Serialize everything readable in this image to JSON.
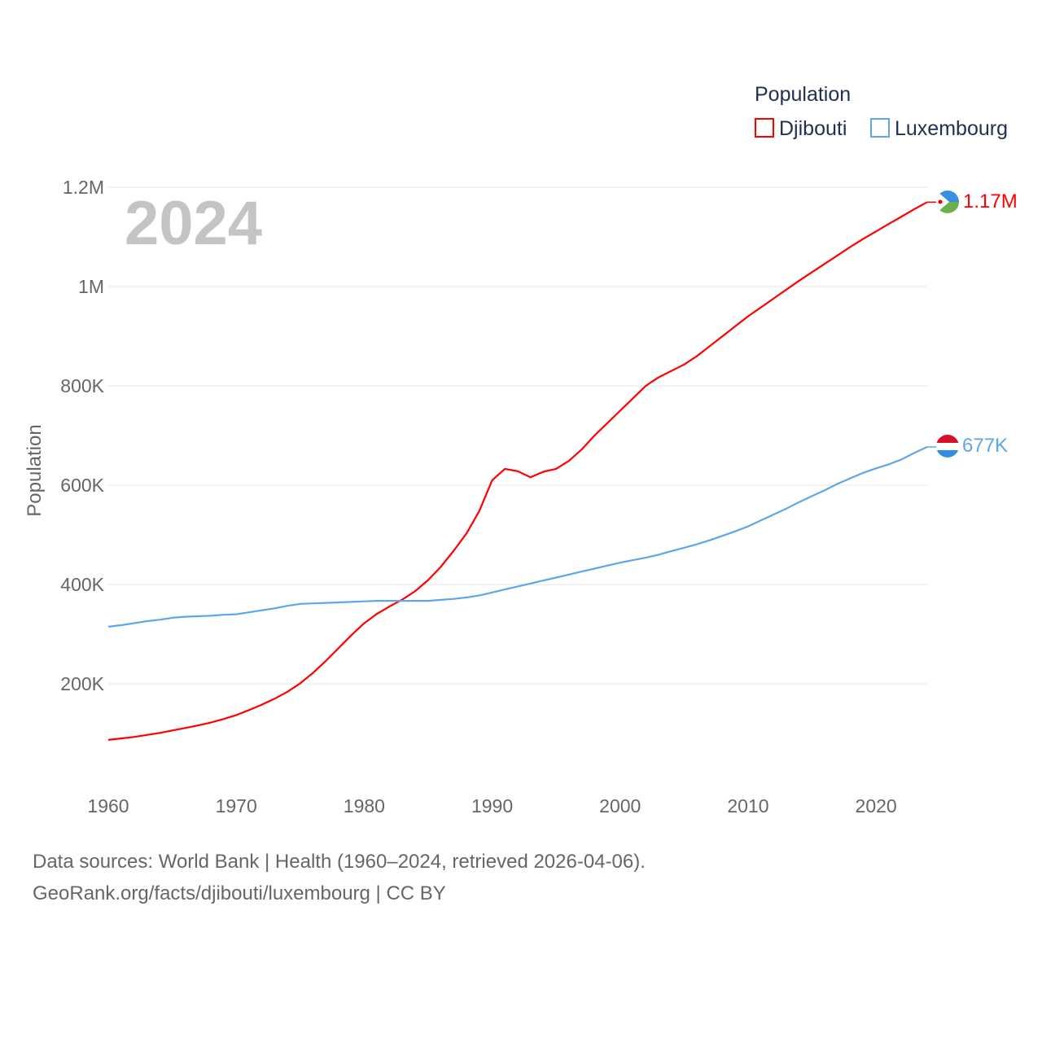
{
  "chart_data": {
    "type": "line",
    "title": "",
    "xlabel": "",
    "ylabel": "Population",
    "xlim": [
      1960,
      2024
    ],
    "ylim": [
      0,
      1200000
    ],
    "grid": true,
    "legend": {
      "title": "Population",
      "placement": "top-right"
    },
    "current_year_label": "2024",
    "x_ticks": [
      "1960",
      "1970",
      "1980",
      "1990",
      "2000",
      "2010",
      "2020"
    ],
    "y_ticks": [
      {
        "value": 200000,
        "label": "200K"
      },
      {
        "value": 400000,
        "label": "400K"
      },
      {
        "value": 600000,
        "label": "600K"
      },
      {
        "value": 800000,
        "label": "800K"
      },
      {
        "value": 1000000,
        "label": "1M"
      },
      {
        "value": 1200000,
        "label": "1.2M"
      }
    ],
    "x": [
      1960,
      1961,
      1962,
      1963,
      1964,
      1965,
      1966,
      1967,
      1968,
      1969,
      1970,
      1971,
      1972,
      1973,
      1974,
      1975,
      1976,
      1977,
      1978,
      1979,
      1980,
      1981,
      1982,
      1983,
      1984,
      1985,
      1986,
      1987,
      1988,
      1989,
      1990,
      1991,
      1992,
      1993,
      1994,
      1995,
      1996,
      1997,
      1998,
      1999,
      2000,
      2001,
      2002,
      2003,
      2004,
      2005,
      2006,
      2007,
      2008,
      2009,
      2010,
      2011,
      2012,
      2013,
      2014,
      2015,
      2016,
      2017,
      2018,
      2019,
      2020,
      2021,
      2022,
      2023,
      2024
    ],
    "series": [
      {
        "name": "Djibouti",
        "color": "#ff0000",
        "end_label": "1.17M",
        "values": [
          87000,
          90000,
          93000,
          97000,
          101000,
          106000,
          111000,
          116000,
          122000,
          129000,
          137000,
          147000,
          158000,
          170000,
          184000,
          201000,
          222000,
          246000,
          272000,
          298000,
          322000,
          341000,
          356000,
          370000,
          387000,
          409000,
          436000,
          468000,
          503000,
          548000,
          610000,
          633000,
          628000,
          616000,
          627000,
          633000,
          649000,
          672000,
          700000,
          725000,
          750000,
          775000,
          800000,
          817000,
          830000,
          843000,
          860000,
          880000,
          900000,
          920000,
          940000,
          958000,
          976000,
          994000,
          1012000,
          1029000,
          1046000,
          1063000,
          1080000,
          1096000,
          1111000,
          1126000,
          1141000,
          1156000,
          1170000
        ]
      },
      {
        "name": "Luxembourg",
        "color": "#5ea6ea",
        "end_label": "677K",
        "values": [
          315000,
          318000,
          322000,
          326000,
          329000,
          333000,
          335000,
          336000,
          337000,
          339000,
          340000,
          344000,
          348000,
          352000,
          357000,
          361000,
          362000,
          363000,
          364000,
          365000,
          366000,
          367000,
          367000,
          367000,
          367000,
          367000,
          369000,
          371000,
          374000,
          378000,
          384000,
          390000,
          396000,
          402000,
          408000,
          414000,
          420000,
          426000,
          432000,
          438000,
          444000,
          449000,
          454000,
          460000,
          467000,
          474000,
          481000,
          489000,
          498000,
          507000,
          517000,
          529000,
          541000,
          553000,
          566000,
          578000,
          590000,
          603000,
          614000,
          625000,
          634000,
          642000,
          652000,
          665000,
          677000
        ]
      }
    ]
  },
  "footer": {
    "line1": "Data sources: World Bank | Health (1960–2024, retrieved 2026-04-06).",
    "line2": "GeoRank.org/facts/djibouti/luxembourg | CC BY"
  }
}
